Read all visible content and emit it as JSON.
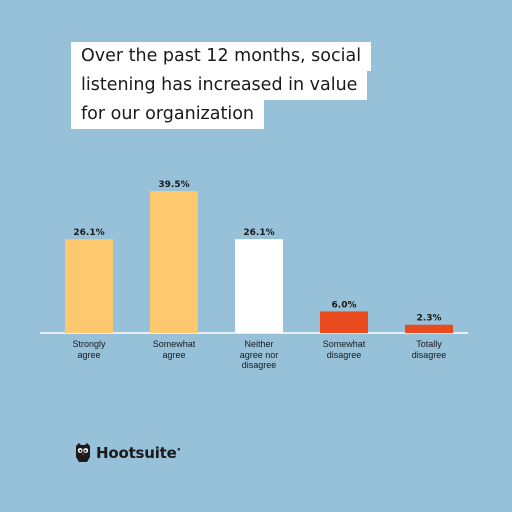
{
  "title_lines": [
    "Over the past 12 months, social",
    "listening has increased in value",
    "for our organization"
  ],
  "chart_data": {
    "type": "bar",
    "title": "Over the past 12 months, social listening has increased in value for our organization",
    "categories": [
      [
        "Strongly",
        "agree"
      ],
      [
        "Somewhat",
        "agree"
      ],
      [
        "Neither",
        "agree nor",
        "disagree"
      ],
      [
        "Somewhat",
        "disagree"
      ],
      [
        "Totally",
        "disagree"
      ]
    ],
    "values": [
      26.1,
      39.5,
      26.1,
      6.0,
      2.3
    ],
    "value_labels": [
      "26.1%",
      "39.5%",
      "26.1%",
      "6.0%",
      "2.3%"
    ],
    "bar_colors": [
      "#fdc86e",
      "#fdc86e",
      "#ffffff",
      "#ea4b1e",
      "#ea4b1e"
    ],
    "ylim": [
      0,
      39.5
    ],
    "xlabel": "",
    "ylabel": "",
    "grid": false
  },
  "brand": {
    "name": "Hootsuite",
    "trademark": "•",
    "icon": "owl-icon"
  },
  "colors": {
    "background": "#96c1d9",
    "positive": "#fdc86e",
    "neutral": "#ffffff",
    "negative": "#ea4b1e",
    "baseline": "#ffffff"
  }
}
